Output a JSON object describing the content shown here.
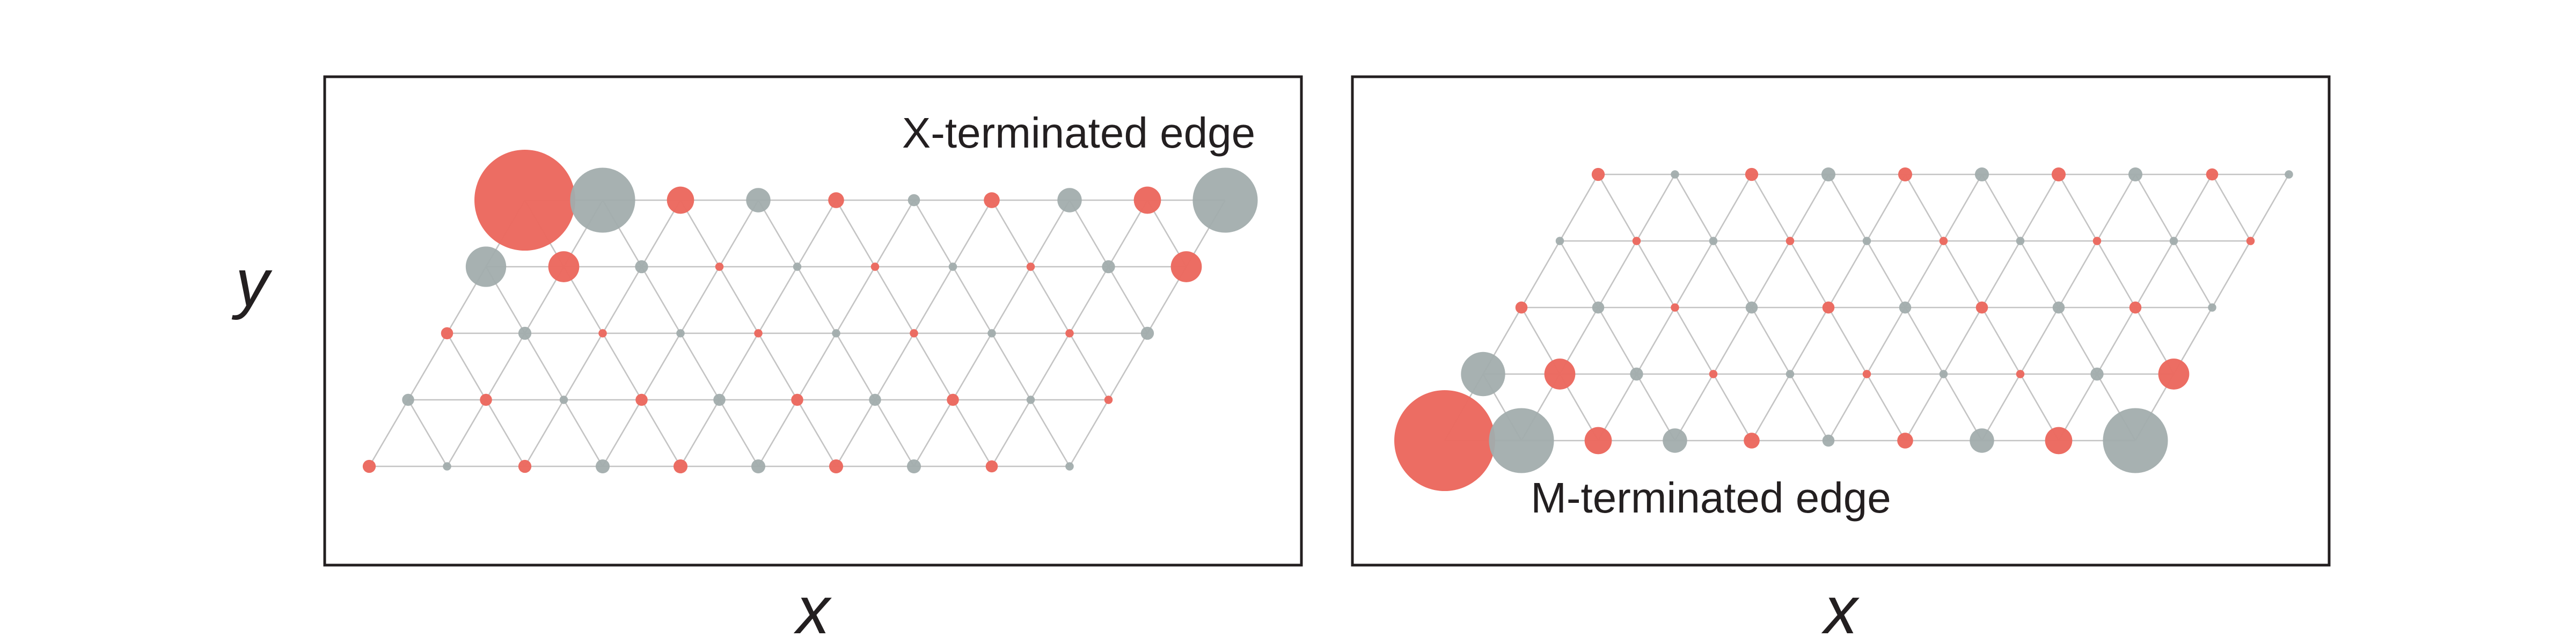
{
  "axis": {
    "y_label": "y",
    "x_label": "x"
  },
  "colors": {
    "metal": "#ec6a60",
    "chalcogen": "#a2adad",
    "bond": "#c4c4c4",
    "frame": "#231f20"
  },
  "panels": [
    {
      "label": "X-terminated edge",
      "rows": 5,
      "cols": 10,
      "edge_row": 0,
      "weights": [
        [
          1.0,
          0.62,
          0.22,
          0.19,
          0.1,
          0.06,
          0.1,
          0.19,
          0.22,
          0.62
        ],
        [
          0.36,
          0.26,
          0.07,
          0.02,
          0.02,
          0.02,
          0.02,
          0.02,
          0.07,
          0.26
        ],
        [
          0.06,
          0.07,
          0.02,
          0.02,
          0.02,
          0.02,
          0.02,
          0.02,
          0.02,
          0.07
        ],
        [
          0.06,
          0.06,
          0.02,
          0.06,
          0.06,
          0.06,
          0.06,
          0.06,
          0.02,
          0.02
        ],
        [
          0.07,
          0.02,
          0.07,
          0.08,
          0.08,
          0.08,
          0.08,
          0.08,
          0.06,
          0.02
        ]
      ]
    },
    {
      "label": "M-terminated edge",
      "rows": 5,
      "cols": 10,
      "edge_row": 4,
      "weights": [
        [
          0.07,
          0.02,
          0.07,
          0.08,
          0.08,
          0.08,
          0.08,
          0.08,
          0.06,
          0.02
        ],
        [
          0.02,
          0.02,
          0.02,
          0.02,
          0.02,
          0.02,
          0.02,
          0.02,
          0.02,
          0.02
        ],
        [
          0.06,
          0.06,
          0.02,
          0.06,
          0.06,
          0.06,
          0.06,
          0.06,
          0.06,
          0.02
        ],
        [
          0.4,
          0.26,
          0.07,
          0.02,
          0.02,
          0.02,
          0.02,
          0.02,
          0.07,
          0.26
        ],
        [
          1.0,
          0.62,
          0.22,
          0.19,
          0.1,
          0.06,
          0.1,
          0.19,
          0.22,
          0.62
        ]
      ]
    }
  ]
}
